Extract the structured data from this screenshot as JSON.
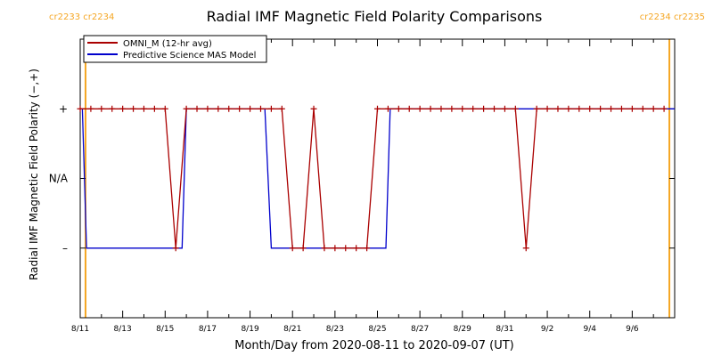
{
  "chart_data": {
    "type": "line",
    "title": "Radial IMF Magnetic Field Polarity Comparisons",
    "xlabel": "Month/Day from 2020-08-11 to 2020-09-07 (UT)",
    "ylabel": "Radial IMF Magnetic Field Polarity (−,+)",
    "xlim": [
      0,
      28
    ],
    "ylim": [
      -2,
      2
    ],
    "x_ticks": [
      {
        "x": 0,
        "label": "8/11"
      },
      {
        "x": 2,
        "label": "8/13"
      },
      {
        "x": 4,
        "label": "8/15"
      },
      {
        "x": 6,
        "label": "8/17"
      },
      {
        "x": 8,
        "label": "8/19"
      },
      {
        "x": 10,
        "label": "8/21"
      },
      {
        "x": 12,
        "label": "8/23"
      },
      {
        "x": 14,
        "label": "8/25"
      },
      {
        "x": 16,
        "label": "8/27"
      },
      {
        "x": 18,
        "label": "8/29"
      },
      {
        "x": 20,
        "label": "8/31"
      },
      {
        "x": 22,
        "label": "9/2"
      },
      {
        "x": 24,
        "label": "9/4"
      },
      {
        "x": 26,
        "label": "9/6"
      }
    ],
    "y_ticks": [
      {
        "y": 1,
        "label": "+"
      },
      {
        "y": 0,
        "label": "N/A"
      },
      {
        "y": -1,
        "label": "–"
      }
    ],
    "carrington_markers": [
      {
        "x": 0.25,
        "left_label": "cr2233",
        "right_label": "cr2234",
        "align": "left"
      },
      {
        "x": 27.75,
        "left_label": "cr2234",
        "right_label": "cr2235",
        "align": "right"
      }
    ],
    "legend": {
      "placement": "top-left",
      "entries": [
        {
          "label": "OMNI_M (12-hr avg)",
          "color": "#aa0000"
        },
        {
          "label": "Predictive Science MAS Model",
          "color": "#0000cc"
        }
      ]
    },
    "colors": {
      "omni": "#aa0000",
      "model": "#0000cc",
      "marker": "#f5a623"
    },
    "series": [
      {
        "name": "OMNI_M (12-hr avg)",
        "style": "line+plus",
        "x": [
          0,
          0.5,
          1,
          1.5,
          2,
          2.5,
          3,
          3.5,
          4,
          4.5,
          5,
          5.5,
          6,
          6.5,
          7,
          7.5,
          8,
          8.5,
          9,
          9.5,
          10,
          10.5,
          11,
          11.5,
          12,
          12.5,
          13,
          13.5,
          14,
          14.5,
          15,
          15.5,
          16,
          16.5,
          17,
          17.5,
          18,
          18.5,
          19,
          19.5,
          20,
          20.5,
          21,
          21.5,
          22,
          22.5,
          23,
          23.5,
          24,
          24.5,
          25,
          25.5,
          26,
          26.5,
          27,
          27.5
        ],
        "values": [
          1,
          1,
          1,
          1,
          1,
          1,
          1,
          1,
          1,
          -1,
          1,
          1,
          1,
          1,
          1,
          1,
          1,
          1,
          1,
          1,
          -1,
          -1,
          1,
          -1,
          -1,
          -1,
          -1,
          -1,
          1,
          1,
          1,
          1,
          1,
          1,
          1,
          1,
          1,
          1,
          1,
          1,
          1,
          1,
          -1,
          1,
          1,
          1,
          1,
          1,
          1,
          1,
          1,
          1,
          1,
          1,
          1,
          1
        ]
      },
      {
        "name": "Predictive Science MAS Model",
        "style": "line",
        "x": [
          0,
          0.1,
          0.3,
          4.8,
          5.0,
          8.7,
          9.0,
          14.4,
          14.6,
          28
        ],
        "values": [
          1,
          1,
          -1,
          -1,
          1,
          1,
          -1,
          -1,
          1,
          1
        ]
      }
    ]
  }
}
